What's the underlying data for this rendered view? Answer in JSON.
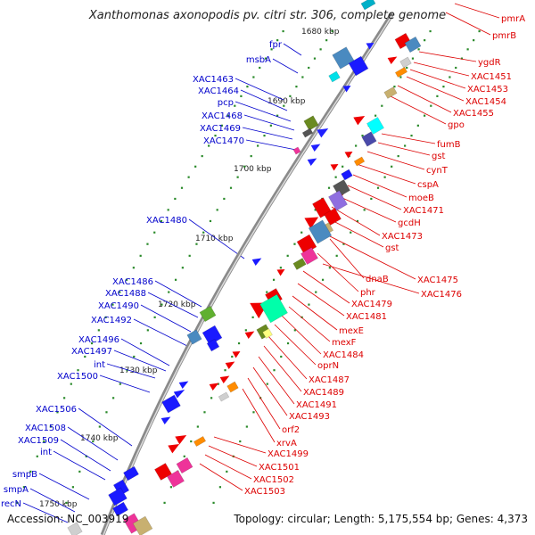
{
  "title": "Xanthomonas axonopodis pv. citri str. 306, complete genome",
  "footer": {
    "accession": "Accession: NC_003919",
    "summary": "Topology: circular; Length: 5,175,554 bp; Genes: 4,373"
  },
  "colors": {
    "backbone": "#8a8a8a",
    "left_labels": "#0000cc",
    "right_labels": "#dd0000",
    "scale_text": "#222222",
    "dots": "#2a8a2a"
  },
  "scale_labels": [
    "1680 kbp",
    "1690 kbp",
    "1700 kbp",
    "1710 kbp",
    "1720 kbp",
    "1730 kbp",
    "1740 kbp",
    "1750 kbp"
  ],
  "left_labels": [
    "fpr",
    "msbA",
    "XAC1463",
    "XAC1464",
    "pcp",
    "XAC1468",
    "XAC1469",
    "XAC1470",
    "XAC1480",
    "XAC1486",
    "XAC1488",
    "XAC1490",
    "XAC1492",
    "XAC1496",
    "XAC1497",
    "int",
    "XAC1500",
    "XAC1506",
    "XAC1508",
    "XAC1509",
    "int",
    "smpB",
    "smpA",
    "recN"
  ],
  "right_labels": [
    "pmrA",
    "pmrB",
    "ygdR",
    "XAC1451",
    "XAC1453",
    "XAC1454",
    "XAC1455",
    "gpo",
    "fumB",
    "gst",
    "cynT",
    "cspA",
    "moeB",
    "XAC1471",
    "gcdH",
    "XAC1473",
    "gst",
    "dnaB",
    "XAC1475",
    "phr",
    "XAC1476",
    "XAC1479",
    "XAC1481",
    "mexE",
    "mexF",
    "XAC1484",
    "oprN",
    "XAC1487",
    "XAC1489",
    "XAC1491",
    "XAC1493",
    "orf2",
    "xrvA",
    "XAC1499",
    "XAC1501",
    "XAC1502",
    "XAC1503"
  ]
}
